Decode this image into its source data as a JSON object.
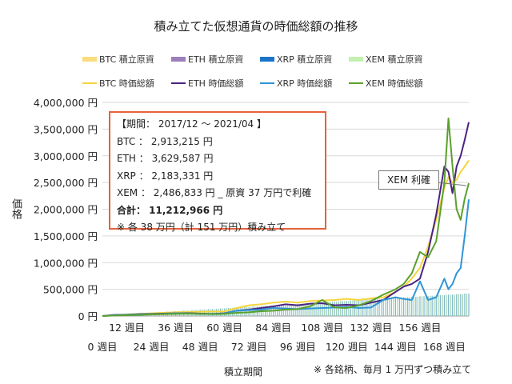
{
  "title": "積み立てた仮想通貨の時価総額の推移",
  "legend": {
    "principal": [
      {
        "label": "BTC  積立原資",
        "color": "#f9dc7e"
      },
      {
        "label": "ETH  積立原資",
        "color": "#9b7fba"
      },
      {
        "label": "XRP  積立原資",
        "color": "#1a75c9"
      },
      {
        "label": "XEM  積立原資",
        "color": "#c4f0b0"
      }
    ],
    "value": [
      {
        "label": "BTC  時価総額",
        "color": "#f5d43c"
      },
      {
        "label": "ETH  時価総額",
        "color": "#4a2380"
      },
      {
        "label": "XRP  時価総額",
        "color": "#2f95d6"
      },
      {
        "label": "XEM  時価総額",
        "color": "#5aa02c"
      }
    ]
  },
  "infobox": {
    "period": "【期間： 2017/12 ～ 2021/04 】",
    "btc": "BTC ： 2,913,215 円",
    "eth": "ETH ： 3,629,587 円",
    "xrp": "XRP ： 2,183,331 円",
    "xem": "XEM ： 2,486,833 円 _ 原資 37 万円で利確",
    "total": "合計： 11,212,966 円",
    "note": "※ 各 38 万円（計 151 万円）積み立て"
  },
  "callout": "XEM 利確",
  "note": "※ 各銘柄、毎月 1 万円ずつ積み立て",
  "chart_data": {
    "type": "line",
    "title": "積み立てた仮想通貨の時価総額の推移",
    "xlabel": "積立期間",
    "ylabel": "価格",
    "ylim": [
      0,
      4000000
    ],
    "xlim": [
      0,
      180
    ],
    "grid": true,
    "legend_position": "top",
    "yticks": [
      "0 円",
      "500,000 円",
      "1,000,000 円",
      "1,500,000 円",
      "2,000,000 円",
      "2,500,000 円",
      "3,000,000 円",
      "3,500,000 円",
      "4,000,000 円"
    ],
    "xticks_row1": [
      "12 週目",
      "36 週目",
      "60 週目",
      "84 週目",
      "108 週目",
      "132 週目",
      "156 週目"
    ],
    "xticks_row2": [
      "0 週目",
      "24 週目",
      "48 週目",
      "72 週目",
      "96 週目",
      "120 週目",
      "144 週目",
      "168 週目"
    ],
    "x": [
      0,
      6,
      12,
      18,
      24,
      30,
      36,
      42,
      48,
      54,
      60,
      66,
      72,
      78,
      84,
      90,
      96,
      102,
      108,
      114,
      120,
      126,
      132,
      138,
      144,
      148,
      152,
      156,
      160,
      164,
      168,
      170,
      172,
      174,
      176,
      178,
      180
    ],
    "series": [
      {
        "name": "BTC  時価総額",
        "values": [
          0,
          15000,
          30000,
          40000,
          50000,
          60000,
          70000,
          75000,
          80000,
          85000,
          85000,
          150000,
          200000,
          220000,
          250000,
          270000,
          250000,
          280000,
          290000,
          300000,
          320000,
          300000,
          330000,
          350000,
          450000,
          550000,
          700000,
          900000,
          1300000,
          1800000,
          2400000,
          2600000,
          2500000,
          2550000,
          2700000,
          2800000,
          2913215
        ]
      },
      {
        "name": "ETH  時価総額",
        "values": [
          0,
          20000,
          25000,
          35000,
          40000,
          45000,
          50000,
          55000,
          45000,
          40000,
          50000,
          100000,
          120000,
          150000,
          180000,
          220000,
          200000,
          230000,
          240000,
          200000,
          210000,
          200000,
          250000,
          300000,
          450000,
          550000,
          600000,
          700000,
          1200000,
          1900000,
          2800000,
          2700000,
          2300000,
          2800000,
          3000000,
          3300000,
          3629587
        ]
      },
      {
        "name": "XRP  時価総額",
        "values": [
          0,
          15000,
          25000,
          30000,
          35000,
          40000,
          50000,
          50000,
          40000,
          35000,
          45000,
          100000,
          110000,
          120000,
          150000,
          140000,
          130000,
          140000,
          150000,
          160000,
          170000,
          150000,
          160000,
          300000,
          350000,
          320000,
          300000,
          650000,
          300000,
          350000,
          700000,
          500000,
          600000,
          800000,
          900000,
          1500000,
          2183331
        ]
      },
      {
        "name": "XEM  時価総額",
        "values": [
          0,
          10000,
          15000,
          20000,
          30000,
          35000,
          40000,
          45000,
          40000,
          35000,
          40000,
          60000,
          70000,
          90000,
          100000,
          120000,
          130000,
          180000,
          300000,
          160000,
          150000,
          200000,
          280000,
          400000,
          500000,
          600000,
          800000,
          1200000,
          1100000,
          1400000,
          2500000,
          3700000,
          2800000,
          2000000,
          1800000,
          2200000,
          2486833
        ]
      }
    ],
    "principal_per_month": 10000
  }
}
